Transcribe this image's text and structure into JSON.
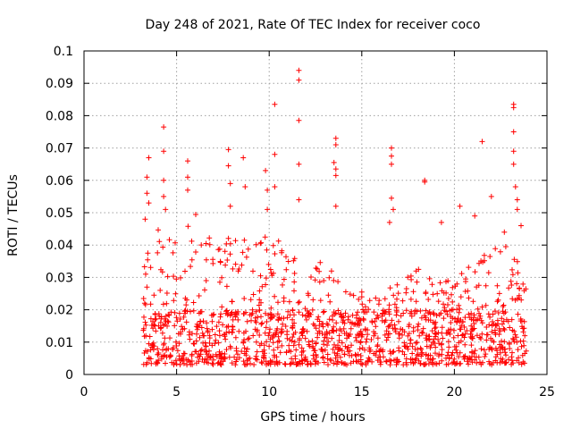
{
  "chart_data": {
    "type": "scatter",
    "title": "Day 248 of 2021, Rate Of TEC Index for receiver coco",
    "xlabel": "GPS time / hours",
    "ylabel": "ROTI / TECUs",
    "xlim": [
      0,
      25
    ],
    "ylim": [
      0,
      0.1
    ],
    "x_ticks": [
      0,
      5,
      10,
      15,
      20,
      25
    ],
    "x_tick_labels": [
      "0",
      "5",
      "10",
      "15",
      "20",
      "25"
    ],
    "y_ticks": [
      0,
      0.01,
      0.02,
      0.03,
      0.04,
      0.05,
      0.06,
      0.07,
      0.08,
      0.09,
      0.1
    ],
    "y_tick_labels": [
      "0",
      "0.01",
      "0.02",
      "0.03",
      "0.04",
      "0.05",
      "0.06",
      "0.07",
      "0.08",
      "0.09",
      "0.1"
    ],
    "grid": true,
    "marker": "plus",
    "marker_color": "#ff0000",
    "series": [
      {
        "name": "ROTI",
        "x_range": [
          3.2,
          23.9
        ],
        "num_points": 1400,
        "seed": 248,
        "bulk_range": [
          0.003,
          0.02
        ],
        "envelope": [
          [
            3.2,
            0.035
          ],
          [
            4.0,
            0.045
          ],
          [
            5.0,
            0.05
          ],
          [
            6.0,
            0.05
          ],
          [
            7.0,
            0.04
          ],
          [
            8.0,
            0.045
          ],
          [
            9.0,
            0.045
          ],
          [
            10.0,
            0.045
          ],
          [
            11.0,
            0.04
          ],
          [
            12.0,
            0.035
          ],
          [
            13.0,
            0.035
          ],
          [
            14.0,
            0.03
          ],
          [
            15.0,
            0.022
          ],
          [
            16.0,
            0.028
          ],
          [
            17.0,
            0.03
          ],
          [
            18.0,
            0.035
          ],
          [
            19.0,
            0.028
          ],
          [
            20.0,
            0.03
          ],
          [
            21.0,
            0.035
          ],
          [
            22.0,
            0.04
          ],
          [
            23.0,
            0.04
          ],
          [
            23.9,
            0.03
          ]
        ],
        "highlights": [
          {
            "x": 11.6,
            "y": 0.094
          },
          {
            "x": 11.6,
            "y": 0.091
          },
          {
            "x": 11.6,
            "y": 0.0785
          },
          {
            "x": 11.6,
            "y": 0.065
          },
          {
            "x": 11.6,
            "y": 0.054
          },
          {
            "x": 23.2,
            "y": 0.0835
          },
          {
            "x": 23.2,
            "y": 0.0825
          },
          {
            "x": 23.2,
            "y": 0.075
          },
          {
            "x": 23.2,
            "y": 0.069
          },
          {
            "x": 23.2,
            "y": 0.065
          },
          {
            "x": 23.3,
            "y": 0.058
          },
          {
            "x": 23.4,
            "y": 0.054
          },
          {
            "x": 23.4,
            "y": 0.051
          },
          {
            "x": 10.3,
            "y": 0.0835
          },
          {
            "x": 10.3,
            "y": 0.068
          },
          {
            "x": 10.3,
            "y": 0.058
          },
          {
            "x": 4.3,
            "y": 0.0765
          },
          {
            "x": 4.3,
            "y": 0.069
          },
          {
            "x": 4.3,
            "y": 0.06
          },
          {
            "x": 4.3,
            "y": 0.055
          },
          {
            "x": 4.4,
            "y": 0.051
          },
          {
            "x": 3.5,
            "y": 0.067
          },
          {
            "x": 3.4,
            "y": 0.061
          },
          {
            "x": 3.4,
            "y": 0.056
          },
          {
            "x": 3.5,
            "y": 0.053
          },
          {
            "x": 3.3,
            "y": 0.048
          },
          {
            "x": 5.6,
            "y": 0.066
          },
          {
            "x": 5.6,
            "y": 0.061
          },
          {
            "x": 5.6,
            "y": 0.057
          },
          {
            "x": 7.8,
            "y": 0.0695
          },
          {
            "x": 7.8,
            "y": 0.0645
          },
          {
            "x": 7.9,
            "y": 0.059
          },
          {
            "x": 7.9,
            "y": 0.052
          },
          {
            "x": 8.6,
            "y": 0.067
          },
          {
            "x": 8.7,
            "y": 0.058
          },
          {
            "x": 9.8,
            "y": 0.063
          },
          {
            "x": 9.9,
            "y": 0.057
          },
          {
            "x": 9.9,
            "y": 0.051
          },
          {
            "x": 13.6,
            "y": 0.073
          },
          {
            "x": 13.6,
            "y": 0.071
          },
          {
            "x": 13.5,
            "y": 0.0655
          },
          {
            "x": 13.6,
            "y": 0.0635
          },
          {
            "x": 13.6,
            "y": 0.0615
          },
          {
            "x": 13.6,
            "y": 0.052
          },
          {
            "x": 16.6,
            "y": 0.07
          },
          {
            "x": 16.6,
            "y": 0.0675
          },
          {
            "x": 16.6,
            "y": 0.065
          },
          {
            "x": 16.6,
            "y": 0.0545
          },
          {
            "x": 16.7,
            "y": 0.051
          },
          {
            "x": 16.5,
            "y": 0.047
          },
          {
            "x": 18.4,
            "y": 0.06
          },
          {
            "x": 18.4,
            "y": 0.0595
          },
          {
            "x": 21.5,
            "y": 0.072
          },
          {
            "x": 22.0,
            "y": 0.055
          },
          {
            "x": 21.1,
            "y": 0.049
          },
          {
            "x": 20.3,
            "y": 0.052
          },
          {
            "x": 19.3,
            "y": 0.047
          },
          {
            "x": 22.7,
            "y": 0.044
          },
          {
            "x": 15.0,
            "y": 0.0255
          },
          {
            "x": 15.0,
            "y": 0.024
          },
          {
            "x": 23.6,
            "y": 0.046
          }
        ]
      }
    ]
  }
}
